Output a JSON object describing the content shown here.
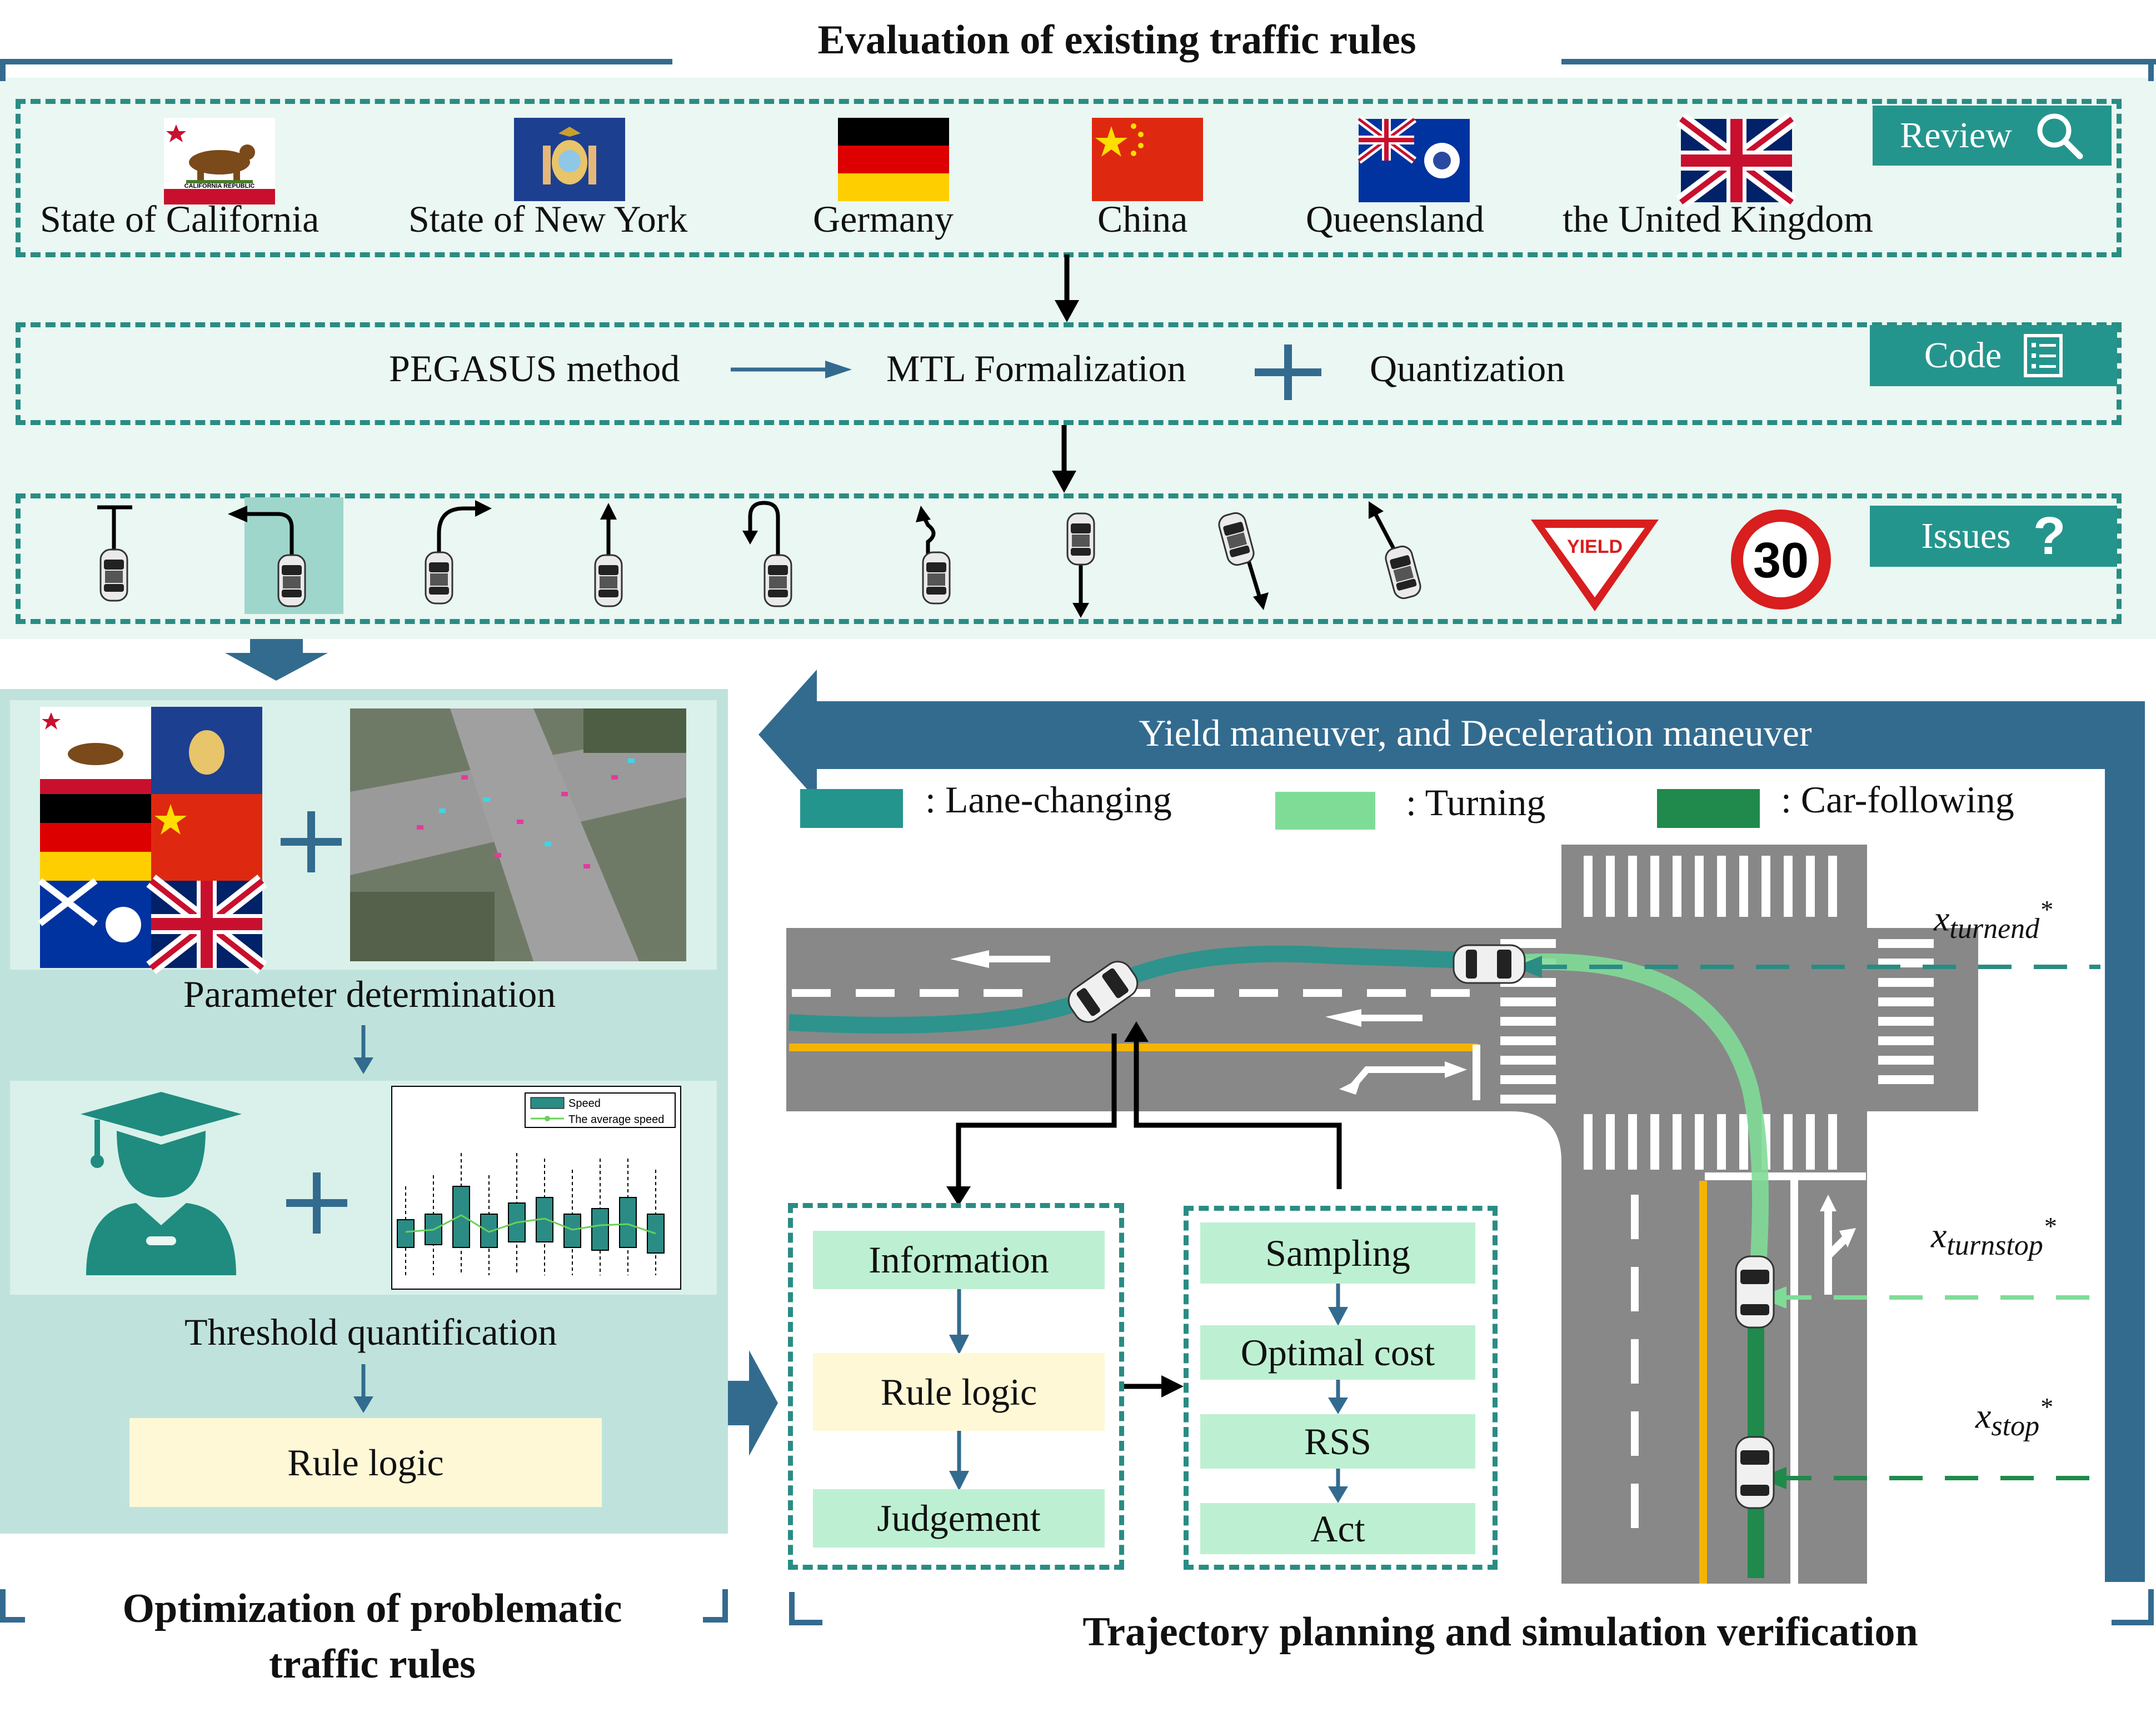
{
  "top": {
    "title": "Evaluation of existing traffic rules",
    "regions": [
      "State of California",
      "State of New York",
      "Germany",
      "China",
      "Queensland",
      "the United Kingdom"
    ],
    "tags": {
      "review": "Review",
      "code": "Code",
      "issues": "Issues"
    },
    "method": {
      "pegasus": "PEGASUS method",
      "mtl": "MTL Formalization",
      "quant": "Quantization"
    },
    "yield_sign": "YIELD",
    "speed_sign": "30",
    "flag_text_ca": "CALIFORNIA REPUBLIC"
  },
  "left": {
    "param": "Parameter determination",
    "threshold": "Threshold quantification",
    "rule_logic": "Rule logic",
    "footer": "Optimization of problematic traffic rules",
    "chart_legend": [
      "Speed",
      "The average speed"
    ]
  },
  "right": {
    "banner": "Yield maneuver, and Deceleration maneuver",
    "legend": [
      ": Lane-changing",
      ": Turning",
      ": Car-following"
    ],
    "legend_colors": [
      "#24958d",
      "#7fdc97",
      "#1f8a4c"
    ],
    "col1": [
      "Information",
      "Rule logic",
      "Judgement"
    ],
    "col2": [
      "Sampling",
      "Optimal cost",
      "RSS",
      "Act"
    ],
    "markers": [
      {
        "base": "x",
        "sub": "turnend",
        "sup": "*"
      },
      {
        "base": "x",
        "sub": "turnstop",
        "sup": "*"
      },
      {
        "base": "x",
        "sub": "stop",
        "sup": "*"
      }
    ],
    "footer": "Trajectory planning and simulation verification"
  },
  "colors": {
    "accent": "#24958d",
    "navy": "#336b8f",
    "panel": "#bfe3dc",
    "pale": "#eaf7f2"
  }
}
